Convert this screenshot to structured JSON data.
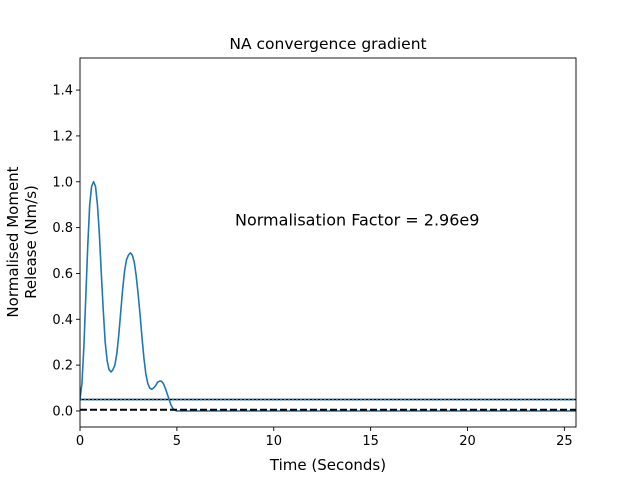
{
  "chart_data": {
    "type": "line",
    "title": "NA convergence gradient",
    "xlabel": "Time (Seconds)",
    "ylabel_lines": [
      "Normalised Moment",
      "Release (Nm/s)"
    ],
    "xlim": [
      0,
      25.6
    ],
    "ylim": [
      -0.07,
      1.54
    ],
    "x_ticks": [
      0,
      5,
      10,
      15,
      20,
      25
    ],
    "y_ticks": [
      0.0,
      0.2,
      0.4,
      0.6,
      0.8,
      1.0,
      1.2,
      1.4
    ],
    "x_tick_labels": [
      "0",
      "5",
      "10",
      "15",
      "20",
      "25"
    ],
    "y_tick_labels": [
      "0.0",
      "0.2",
      "0.4",
      "0.6",
      "0.8",
      "1.0",
      "1.2",
      "1.4"
    ],
    "annotation": {
      "text": "Normalisation Factor = 2.96e9",
      "x": 8.0,
      "y": 0.8
    },
    "grid": false,
    "series": [
      {
        "style": "solid",
        "color": "#1f77b4",
        "x": [
          0.0,
          0.1,
          0.2,
          0.3,
          0.4,
          0.5,
          0.6,
          0.7,
          0.8,
          0.9,
          1.0,
          1.1,
          1.2,
          1.3,
          1.4,
          1.5,
          1.6,
          1.7,
          1.8,
          1.9,
          2.0,
          2.1,
          2.2,
          2.3,
          2.4,
          2.5,
          2.6,
          2.7,
          2.8,
          2.9,
          3.0,
          3.1,
          3.2,
          3.3,
          3.4,
          3.5,
          3.6,
          3.7,
          3.8,
          3.9,
          4.0,
          4.1,
          4.2,
          4.3,
          4.4,
          4.5,
          4.6,
          4.7,
          4.8,
          4.9,
          5.0,
          5.1,
          5.2,
          5.3,
          5.4,
          5.5,
          5.6,
          5.7,
          5.8,
          5.9,
          6.0,
          6.5,
          7.0,
          8.0,
          10.0,
          15.0,
          20.0,
          25.6
        ],
        "y": [
          0.05,
          0.12,
          0.28,
          0.5,
          0.72,
          0.9,
          0.98,
          1.0,
          0.98,
          0.9,
          0.77,
          0.6,
          0.44,
          0.3,
          0.22,
          0.18,
          0.17,
          0.18,
          0.2,
          0.25,
          0.33,
          0.43,
          0.53,
          0.61,
          0.66,
          0.68,
          0.69,
          0.68,
          0.65,
          0.59,
          0.51,
          0.42,
          0.32,
          0.23,
          0.16,
          0.12,
          0.1,
          0.095,
          0.1,
          0.11,
          0.125,
          0.13,
          0.13,
          0.12,
          0.1,
          0.075,
          0.05,
          0.025,
          0.01,
          0.003,
          0.0,
          0.0,
          0.0,
          0.0,
          0.0,
          0.0,
          0.0,
          0.0,
          0.0,
          0.0,
          0.0,
          0.0,
          0.0,
          0.0,
          0.0,
          0.0,
          0.0,
          0.0
        ]
      },
      {
        "style": "solid",
        "color": "#000000",
        "x": [
          0,
          25.6
        ],
        "y": [
          0.05,
          0.05
        ]
      },
      {
        "style": "dotted",
        "color": "#1f77b4",
        "x": [
          0,
          25.6
        ],
        "y": [
          0.05,
          0.05
        ]
      },
      {
        "style": "dashed",
        "color": "#000000",
        "x": [
          0,
          25.6
        ],
        "y": [
          0.005,
          0.005
        ]
      }
    ]
  }
}
